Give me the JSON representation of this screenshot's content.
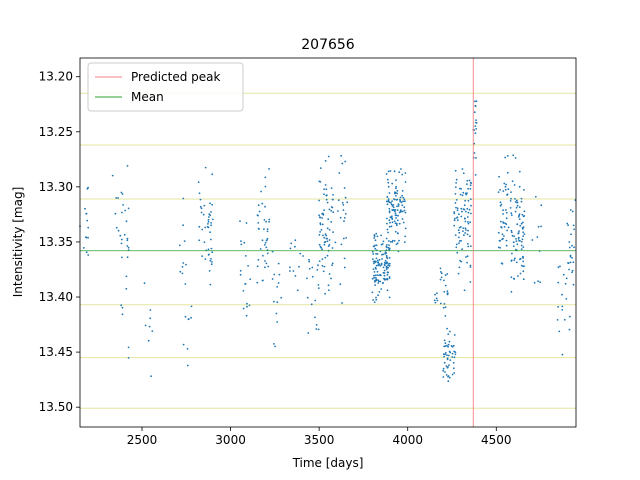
{
  "chart_data": {
    "type": "scatter",
    "title": "207656",
    "xlabel": "Time [days]",
    "ylabel": "Intensitivity [mag]",
    "xlim": [
      2150,
      4950
    ],
    "ylim": [
      13.518,
      13.183
    ],
    "y_inverted": true,
    "x_ticks": [
      2500,
      3000,
      3500,
      4000,
      4500
    ],
    "y_ticks": [
      13.2,
      13.25,
      13.3,
      13.35,
      13.4,
      13.45,
      13.5
    ],
    "x_tick_labels": [
      "2500",
      "3000",
      "3500",
      "4000",
      "4500"
    ],
    "y_tick_labels": [
      "13.20",
      "13.25",
      "13.30",
      "13.35",
      "13.40",
      "13.45",
      "13.50"
    ],
    "legend": {
      "placement": "top-left",
      "entries": [
        {
          "label": "Predicted peak",
          "color": "#f08080"
        },
        {
          "label": "Mean",
          "color": "#2ca02c"
        }
      ]
    },
    "predicted_peak_x": 4370,
    "mean_y": 13.358,
    "reference_lines_y": [
      13.215,
      13.262,
      13.311,
      13.407,
      13.455,
      13.501
    ],
    "reference_line_color": "#e6e6a0",
    "point_color": "#1f77b4",
    "series": [
      {
        "clusters": [
          {
            "x0": 2150,
            "x1": 2200,
            "y0": 13.26,
            "y1": 13.42,
            "n": 14
          },
          {
            "x0": 2330,
            "x1": 2390,
            "y0": 13.26,
            "y1": 13.4,
            "n": 10
          },
          {
            "x0": 2380,
            "x1": 2430,
            "y0": 13.24,
            "y1": 13.47,
            "n": 22
          },
          {
            "x0": 2510,
            "x1": 2560,
            "y0": 13.38,
            "y1": 13.49,
            "n": 8
          },
          {
            "x0": 2700,
            "x1": 2780,
            "y0": 13.29,
            "y1": 13.48,
            "n": 18
          },
          {
            "x0": 2820,
            "x1": 2900,
            "y0": 13.27,
            "y1": 13.41,
            "n": 45
          },
          {
            "x0": 3050,
            "x1": 3120,
            "y0": 13.31,
            "y1": 13.45,
            "n": 18
          },
          {
            "x0": 3150,
            "x1": 3220,
            "y0": 13.27,
            "y1": 13.41,
            "n": 40
          },
          {
            "x0": 3230,
            "x1": 3290,
            "y0": 13.33,
            "y1": 13.46,
            "n": 14
          },
          {
            "x0": 3330,
            "x1": 3420,
            "y0": 13.34,
            "y1": 13.4,
            "n": 12
          },
          {
            "x0": 3430,
            "x1": 3500,
            "y0": 13.34,
            "y1": 13.46,
            "n": 18
          },
          {
            "x0": 3500,
            "x1": 3580,
            "y0": 13.26,
            "y1": 13.41,
            "n": 75
          },
          {
            "x0": 3580,
            "x1": 3660,
            "y0": 13.22,
            "y1": 13.43,
            "n": 24
          },
          {
            "x0": 3800,
            "x1": 3900,
            "y0": 13.33,
            "y1": 13.41,
            "n": 130
          },
          {
            "x0": 3880,
            "x1": 3990,
            "y0": 13.27,
            "y1": 13.37,
            "n": 120
          },
          {
            "x0": 4150,
            "x1": 4230,
            "y0": 13.35,
            "y1": 13.43,
            "n": 25
          },
          {
            "x0": 4200,
            "x1": 4270,
            "y0": 13.42,
            "y1": 13.49,
            "n": 50
          },
          {
            "x0": 4260,
            "x1": 4360,
            "y0": 13.26,
            "y1": 13.4,
            "n": 95
          },
          {
            "x0": 4370,
            "x1": 4390,
            "y0": 13.2,
            "y1": 13.3,
            "n": 18
          },
          {
            "x0": 4510,
            "x1": 4570,
            "y0": 13.26,
            "y1": 13.4,
            "n": 45
          },
          {
            "x0": 4580,
            "x1": 4660,
            "y0": 13.26,
            "y1": 13.42,
            "n": 90
          },
          {
            "x0": 4690,
            "x1": 4760,
            "y0": 13.25,
            "y1": 13.47,
            "n": 10
          },
          {
            "x0": 4840,
            "x1": 4930,
            "y0": 13.34,
            "y1": 13.46,
            "n": 18
          },
          {
            "x0": 4900,
            "x1": 4950,
            "y0": 13.29,
            "y1": 13.41,
            "n": 22
          }
        ]
      }
    ]
  }
}
